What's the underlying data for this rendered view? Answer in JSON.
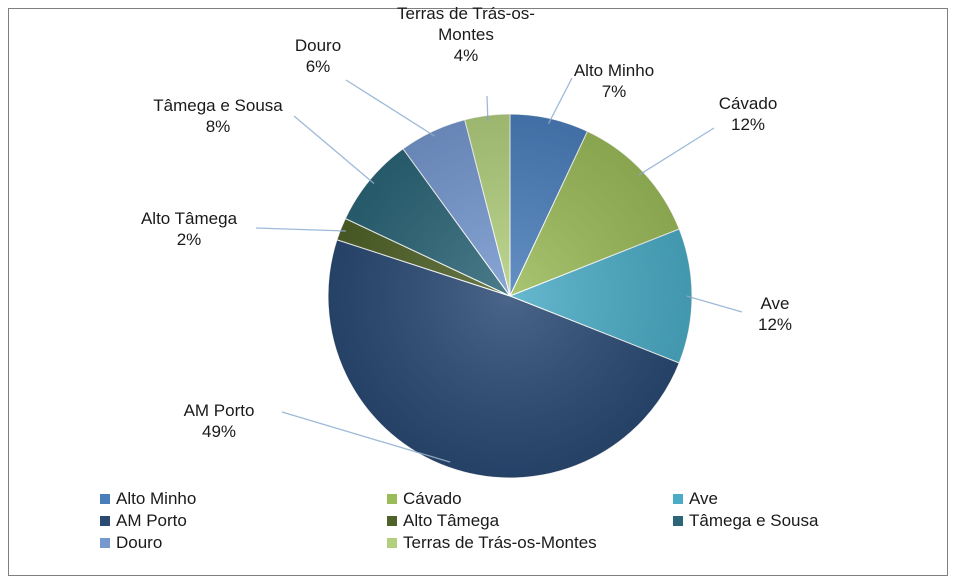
{
  "chart_data": {
    "type": "pie",
    "categories": [
      "Alto Minho",
      "Cávado",
      "Ave",
      "AM Porto",
      "Alto Tâmega",
      "Tâmega e Sousa",
      "Douro",
      "Terras de Trás-os-Montes"
    ],
    "values": [
      7,
      12,
      12,
      49,
      2,
      8,
      6,
      4
    ],
    "value_labels": [
      "7%",
      "12%",
      "12%",
      "49%",
      "2%",
      "8%",
      "6%",
      "4%"
    ],
    "colors": [
      "#4a7ebb",
      "#9bbb59",
      "#4bacc6",
      "#2a4a74",
      "#4f6228",
      "#2b6577",
      "#7598cf",
      "#b2cf7e"
    ],
    "legend": "bottom"
  }
}
